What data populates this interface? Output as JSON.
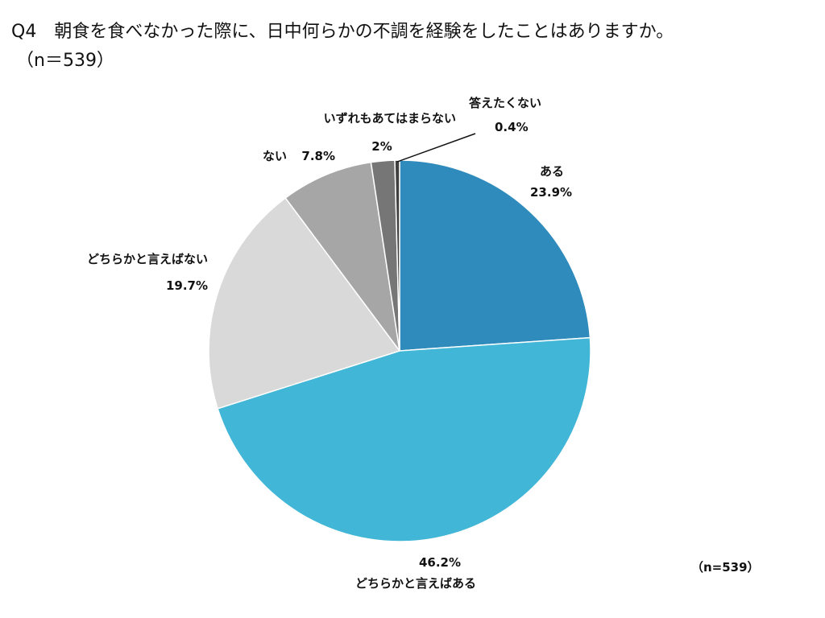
{
  "title_line1": "Q4　朝食を食べなかった際に、日中何らかの不調を経験をしたことはありますか。",
  "title_line2": "（n＝539）",
  "n_label": "（n=539）",
  "chart_data": {
    "type": "pie",
    "title": "Q4　朝食を食べなかった際に、日中何らかの不調を経験をしたことはありますか。",
    "subtitle": "（n＝539）",
    "slices": [
      {
        "label": "ある",
        "value": 23.9,
        "value_label": "23.9%",
        "color": "#2e8bbb"
      },
      {
        "label": "どちらかと言えばある",
        "value": 46.2,
        "value_label": "46.2%",
        "color": "#42b6d6"
      },
      {
        "label": "どちらかと言えばない",
        "value": 19.7,
        "value_label": "19.7%",
        "color": "#d9d9d9"
      },
      {
        "label": "ない",
        "value": 7.8,
        "value_label": "7.8%",
        "color": "#a6a6a6"
      },
      {
        "label": "いずれもあてはまらない",
        "value": 2,
        "value_label": "2%",
        "color": "#767676"
      },
      {
        "label": "答えたくない",
        "value": 0.4,
        "value_label": "0.4%",
        "color": "#404040"
      }
    ],
    "start": "12 o'clock",
    "direction": "clockwise",
    "legend": "none"
  }
}
